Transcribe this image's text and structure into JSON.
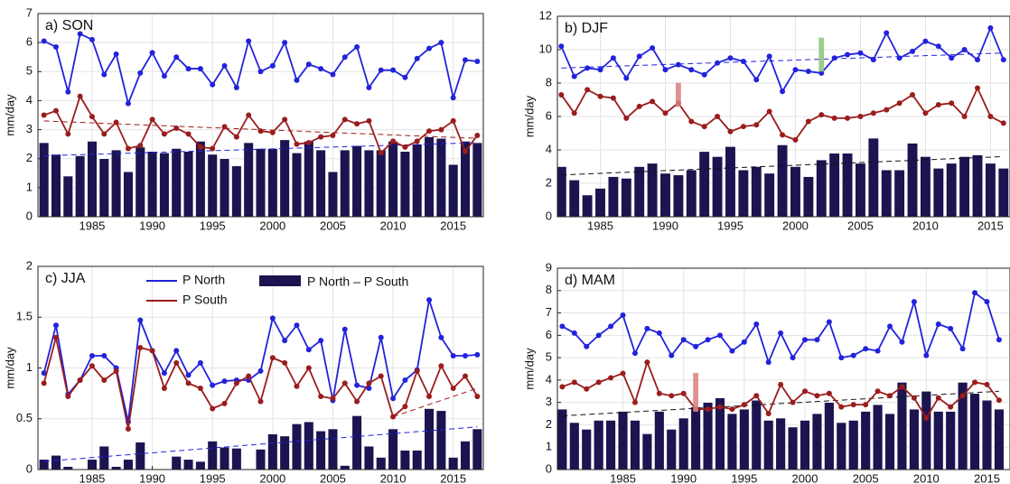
{
  "chart_data": [
    {
      "type": "bar-line",
      "title": "a) SON",
      "ylabel": "mm/day",
      "grid": true,
      "x": [
        1981,
        1982,
        1983,
        1984,
        1985,
        1986,
        1987,
        1988,
        1989,
        1990,
        1991,
        1992,
        1993,
        1994,
        1995,
        1996,
        1997,
        1998,
        1999,
        2000,
        2001,
        2002,
        2003,
        2004,
        2005,
        2006,
        2007,
        2008,
        2009,
        2010,
        2011,
        2012,
        2013,
        2014,
        2015,
        2016,
        2017
      ],
      "xlim": [
        1980.5,
        2017.5
      ],
      "xticks": [
        1985,
        1990,
        1995,
        2000,
        2005,
        2010,
        2015
      ],
      "ylim": [
        0,
        7
      ],
      "yticks": [
        0,
        1,
        2,
        3,
        4,
        5,
        6,
        7
      ],
      "series": [
        {
          "kind": "bar",
          "color": "#1b1450",
          "values": [
            2.55,
            2.15,
            1.4,
            2.1,
            2.6,
            2.0,
            2.3,
            1.55,
            2.4,
            2.25,
            2.2,
            2.35,
            2.25,
            2.6,
            2.15,
            2.0,
            1.75,
            2.55,
            2.35,
            2.35,
            2.65,
            2.2,
            2.6,
            2.3,
            1.55,
            2.3,
            2.45,
            2.3,
            2.3,
            2.6,
            2.25,
            2.5,
            2.75,
            2.7,
            1.8,
            2.6,
            2.55
          ]
        },
        {
          "kind": "line",
          "color": "#2222dd",
          "values": [
            6.05,
            5.85,
            4.3,
            6.3,
            6.1,
            4.9,
            5.6,
            3.9,
            4.95,
            5.65,
            4.85,
            5.5,
            5.1,
            5.1,
            4.55,
            5.2,
            4.45,
            6.05,
            5.0,
            5.2,
            6.0,
            4.7,
            5.25,
            5.1,
            4.9,
            5.5,
            5.85,
            4.45,
            5.05,
            5.05,
            4.8,
            5.45,
            5.8,
            6.0,
            4.1,
            5.4,
            5.35
          ]
        },
        {
          "kind": "line",
          "color": "#9b1c1c",
          "values": [
            3.5,
            3.65,
            2.85,
            4.15,
            3.45,
            2.85,
            3.25,
            2.35,
            2.45,
            3.35,
            2.85,
            3.05,
            2.85,
            2.4,
            2.35,
            3.1,
            2.75,
            3.5,
            2.95,
            2.9,
            3.35,
            2.5,
            2.55,
            2.75,
            2.8,
            3.35,
            3.2,
            3.3,
            2.2,
            2.6,
            2.4,
            2.6,
            2.95,
            3.0,
            3.3,
            2.25,
            2.8
          ]
        }
      ],
      "trends": [
        {
          "color": "#2222dd",
          "x": [
            1981,
            2017
          ],
          "values": [
            2.1,
            2.55
          ]
        },
        {
          "color": "#9b1c1c",
          "x": [
            1981,
            2017
          ],
          "values": [
            3.3,
            2.7
          ]
        }
      ]
    },
    {
      "type": "bar-line",
      "title": "b) DJF",
      "ylabel": "mm/day",
      "grid": true,
      "x": [
        1982,
        1983,
        1984,
        1985,
        1986,
        1987,
        1988,
        1989,
        1990,
        1991,
        1992,
        1993,
        1994,
        1995,
        1996,
        1997,
        1998,
        1999,
        2000,
        2001,
        2002,
        2003,
        2004,
        2005,
        2006,
        2007,
        2008,
        2009,
        2010,
        2011,
        2012,
        2013,
        2014,
        2015,
        2016
      ],
      "xlim": [
        1981.7,
        2016.5
      ],
      "xticks": [
        1985,
        1990,
        1995,
        2000,
        2005,
        2010,
        2015
      ],
      "ylim": [
        0,
        12
      ],
      "yticks": [
        0,
        2,
        4,
        6,
        8,
        10,
        12
      ],
      "series": [
        {
          "kind": "bar",
          "color": "#1b1450",
          "values": [
            3.0,
            2.2,
            1.3,
            1.7,
            2.4,
            2.3,
            3.0,
            3.2,
            2.6,
            2.5,
            2.8,
            3.9,
            3.6,
            4.2,
            2.8,
            3.0,
            2.6,
            4.3,
            3.0,
            2.4,
            3.4,
            3.8,
            3.8,
            3.2,
            4.7,
            2.8,
            2.8,
            4.4,
            3.6,
            2.9,
            3.2,
            3.6,
            3.7,
            3.2,
            2.9
          ]
        },
        {
          "kind": "line",
          "color": "#2222dd",
          "values": [
            10.2,
            8.4,
            8.9,
            8.8,
            9.5,
            8.3,
            9.6,
            10.1,
            8.8,
            9.1,
            8.8,
            8.5,
            9.2,
            9.5,
            9.3,
            8.2,
            9.6,
            7.5,
            8.8,
            8.7,
            8.6,
            9.5,
            9.7,
            9.8,
            9.4,
            11.0,
            9.5,
            9.9,
            10.5,
            10.2,
            9.5,
            10.0,
            9.4,
            11.3,
            9.4
          ]
        },
        {
          "kind": "line",
          "color": "#9b1c1c",
          "values": [
            7.3,
            6.2,
            7.6,
            7.2,
            7.1,
            5.9,
            6.6,
            6.9,
            6.2,
            6.8,
            5.7,
            5.4,
            6.0,
            5.1,
            5.4,
            5.5,
            6.3,
            4.9,
            4.6,
            5.7,
            6.1,
            5.9,
            5.9,
            6.0,
            6.2,
            6.4,
            6.8,
            7.3,
            6.2,
            6.7,
            6.8,
            6.0,
            7.7,
            6.0,
            5.6
          ]
        }
      ],
      "trends": [
        {
          "color": "#2222dd",
          "x": [
            1982,
            2016
          ],
          "values": [
            8.9,
            9.8
          ]
        },
        {
          "color": "#111111",
          "x": [
            1982,
            2016
          ],
          "values": [
            2.5,
            3.6
          ]
        }
      ],
      "markers": [
        {
          "color": "#d98080",
          "x": 1991,
          "y": [
            6.6,
            8.0
          ]
        },
        {
          "color": "#8cc47a",
          "x": 2002,
          "y": [
            8.7,
            10.7
          ]
        }
      ]
    },
    {
      "type": "bar-line",
      "title": "c) JJA",
      "ylabel": "mm/day",
      "grid": true,
      "legend": true,
      "x": [
        1981,
        1982,
        1983,
        1984,
        1985,
        1986,
        1987,
        1988,
        1989,
        1990,
        1991,
        1992,
        1993,
        1994,
        1995,
        1996,
        1997,
        1998,
        1999,
        2000,
        2001,
        2002,
        2003,
        2004,
        2005,
        2006,
        2007,
        2008,
        2009,
        2010,
        2011,
        2012,
        2013,
        2014,
        2015,
        2016,
        2017
      ],
      "xlim": [
        1980.5,
        2017.5
      ],
      "xticks": [
        1985,
        1990,
        1995,
        2000,
        2005,
        2010,
        2015
      ],
      "ylim": [
        0,
        2
      ],
      "yticks": [
        0,
        0.5,
        1,
        1.5,
        2
      ],
      "series": [
        {
          "kind": "line",
          "name": "P North",
          "color": "#2222dd",
          "values": [
            0.95,
            1.42,
            0.74,
            0.88,
            1.12,
            1.12,
            1.0,
            0.47,
            1.47,
            1.17,
            0.95,
            1.17,
            0.93,
            1.05,
            0.83,
            0.87,
            0.88,
            0.88,
            0.97,
            1.49,
            1.27,
            1.42,
            1.18,
            1.27,
            0.68,
            1.38,
            0.83,
            0.8,
            1.3,
            0.7,
            0.88,
            0.98,
            1.67,
            1.3,
            1.12,
            1.12,
            1.13
          ]
        },
        {
          "kind": "line",
          "name": "P South",
          "color": "#9b1c1c",
          "values": [
            0.85,
            1.3,
            0.72,
            0.88,
            1.02,
            0.88,
            0.97,
            0.4,
            1.2,
            1.17,
            0.8,
            1.05,
            0.85,
            0.8,
            0.6,
            0.65,
            0.85,
            0.92,
            0.67,
            1.1,
            1.05,
            0.82,
            1.0,
            0.72,
            0.7,
            0.85,
            0.67,
            0.85,
            0.92,
            0.52,
            0.62,
            0.97,
            0.72,
            1.02,
            0.8,
            0.92,
            0.72
          ]
        },
        {
          "kind": "bar",
          "name": "P North – P South",
          "color": "#1b1450",
          "values": [
            0.1,
            0.14,
            0.03,
            0,
            0.1,
            0.23,
            0.03,
            0.1,
            0.27,
            0,
            0,
            0.13,
            0.1,
            0.08,
            0.28,
            0.22,
            0.21,
            0,
            0.2,
            0.35,
            0.33,
            0.45,
            0.47,
            0.38,
            0.4,
            0.04,
            0.53,
            0.23,
            0.12,
            0.4,
            0.19,
            0.19,
            0.6,
            0.58,
            0.12,
            0.28,
            0.4
          ]
        }
      ],
      "trends": [
        {
          "color": "#2222dd",
          "x": [
            1981,
            2017
          ],
          "values": [
            0.08,
            0.42
          ]
        },
        {
          "color": "#9b1c1c",
          "x": [
            2010,
            2017
          ],
          "values": [
            0.52,
            0.8
          ]
        }
      ]
    },
    {
      "type": "bar-line",
      "title": "d) MAM",
      "ylabel": "mm/day",
      "grid": true,
      "x": [
        1980,
        1981,
        1982,
        1983,
        1984,
        1985,
        1986,
        1987,
        1988,
        1989,
        1990,
        1991,
        1992,
        1993,
        1994,
        1995,
        1996,
        1997,
        1998,
        1999,
        2000,
        2001,
        2002,
        2003,
        2004,
        2005,
        2006,
        2007,
        2008,
        2009,
        2010,
        2011,
        2012,
        2013,
        2014,
        2015,
        2016
      ],
      "xlim": [
        1979.6,
        2016.9
      ],
      "xticks": [
        1985,
        1990,
        1995,
        2000,
        2005,
        2010,
        2015
      ],
      "ylim": [
        0,
        9
      ],
      "yticks": [
        0,
        1,
        2,
        3,
        4,
        5,
        6,
        7,
        8,
        9
      ],
      "series": [
        {
          "kind": "bar",
          "color": "#1b1450",
          "values": [
            2.7,
            2.1,
            1.8,
            2.2,
            2.2,
            2.6,
            2.2,
            1.6,
            2.6,
            1.8,
            2.3,
            2.8,
            3.0,
            3.2,
            2.5,
            2.7,
            3.1,
            2.2,
            2.3,
            1.9,
            2.2,
            2.5,
            3.0,
            2.1,
            2.2,
            2.6,
            2.9,
            2.5,
            3.9,
            2.7,
            3.5,
            2.6,
            2.6,
            3.9,
            3.4,
            3.1,
            2.7
          ]
        },
        {
          "kind": "line",
          "color": "#2222dd",
          "values": [
            6.4,
            6.1,
            5.5,
            6.0,
            6.4,
            6.9,
            5.2,
            6.3,
            6.1,
            5.1,
            5.8,
            5.5,
            5.8,
            6.0,
            5.3,
            5.7,
            6.5,
            4.8,
            6.1,
            5.0,
            5.8,
            5.8,
            6.6,
            5.0,
            5.1,
            5.4,
            5.3,
            6.4,
            5.7,
            7.5,
            5.1,
            6.5,
            6.3,
            5.4,
            7.9,
            7.5,
            5.8
          ]
        },
        {
          "kind": "line",
          "color": "#9b1c1c",
          "values": [
            3.7,
            3.9,
            3.6,
            3.9,
            4.1,
            4.3,
            3.0,
            4.8,
            3.4,
            3.3,
            3.4,
            2.7,
            2.7,
            2.8,
            2.7,
            2.9,
            3.3,
            2.5,
            3.8,
            3.0,
            3.5,
            3.3,
            3.4,
            2.8,
            2.9,
            2.9,
            3.5,
            3.3,
            3.7,
            3.2,
            2.3,
            3.2,
            2.8,
            3.3,
            3.9,
            3.8,
            3.1
          ]
        }
      ],
      "trends": [
        {
          "color": "#111111",
          "x": [
            1980,
            2016
          ],
          "values": [
            2.4,
            3.5
          ]
        }
      ],
      "markers": [
        {
          "color": "#d98080",
          "x": 1991,
          "y": [
            2.6,
            4.3
          ]
        }
      ]
    }
  ]
}
